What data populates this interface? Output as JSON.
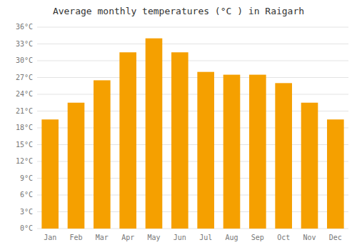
{
  "chart_data": {
    "type": "bar",
    "title": "Average monthly temperatures (°C ) in Raigarh",
    "categories": [
      "Jan",
      "Feb",
      "Mar",
      "Apr",
      "May",
      "Jun",
      "Jul",
      "Aug",
      "Sep",
      "Oct",
      "Nov",
      "Dec"
    ],
    "values": [
      19.5,
      22.5,
      26.5,
      31.5,
      34.0,
      31.5,
      28.0,
      27.5,
      27.5,
      26.0,
      22.5,
      19.5
    ],
    "color": "#F5A000",
    "ylim": [
      0,
      36
    ],
    "yticks": [
      {
        "value": 0,
        "label": "0°C"
      },
      {
        "value": 3,
        "label": "3°C"
      },
      {
        "value": 6,
        "label": "6°C"
      },
      {
        "value": 9,
        "label": "9°C"
      },
      {
        "value": 12,
        "label": "12°C"
      },
      {
        "value": 15,
        "label": "15°C"
      },
      {
        "value": 18,
        "label": "18°C"
      },
      {
        "value": 21,
        "label": "21°C"
      },
      {
        "value": 24,
        "label": "24°C"
      },
      {
        "value": 27,
        "label": "27°C"
      },
      {
        "value": 30,
        "label": "30°C"
      },
      {
        "value": 33,
        "label": "33°C"
      },
      {
        "value": 36,
        "label": "36°C"
      }
    ],
    "grid": true
  }
}
